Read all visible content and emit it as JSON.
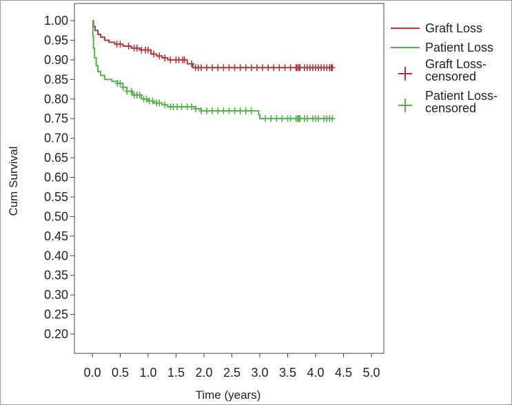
{
  "chart_data": {
    "type": "line",
    "xlabel": "Time (years)",
    "ylabel": "Cum Survival",
    "xlim": [
      0.0,
      5.0
    ],
    "ylim": [
      0.2,
      1.0
    ],
    "x_ticks": [
      "0.0",
      "0.5",
      "1.0",
      "1.5",
      "2.0",
      "2.5",
      "3.0",
      "3.5",
      "4.0",
      "4.5",
      "5.0"
    ],
    "y_ticks": [
      "0.20",
      "0.25",
      "0.30",
      "0.35",
      "0.40",
      "0.45",
      "0.50",
      "0.55",
      "0.60",
      "0.65",
      "0.70",
      "0.75",
      "0.80",
      "0.85",
      "0.90",
      "0.95",
      "1.00"
    ],
    "legend_position": "right",
    "legend": [
      {
        "label": "Graft Loss",
        "symbol": "line",
        "color": "#b5343c"
      },
      {
        "label": "Patient Loss",
        "symbol": "line",
        "color": "#55b04a"
      },
      {
        "label": "Graft Loss-",
        "label2": "censored",
        "symbol": "plus",
        "color": "#b5343c"
      },
      {
        "label": "Patient Loss-",
        "label2": "censored",
        "symbol": "plus",
        "color": "#55b04a"
      }
    ],
    "series": [
      {
        "name": "Graft Loss",
        "color": "#b5343c",
        "steps": [
          [
            0.0,
            1.0
          ],
          [
            0.02,
            0.985
          ],
          [
            0.05,
            0.975
          ],
          [
            0.1,
            0.965
          ],
          [
            0.15,
            0.958
          ],
          [
            0.22,
            0.95
          ],
          [
            0.3,
            0.945
          ],
          [
            0.4,
            0.94
          ],
          [
            0.55,
            0.935
          ],
          [
            0.7,
            0.93
          ],
          [
            0.85,
            0.925
          ],
          [
            1.05,
            0.915
          ],
          [
            1.15,
            0.91
          ],
          [
            1.25,
            0.905
          ],
          [
            1.35,
            0.9
          ],
          [
            1.7,
            0.89
          ],
          [
            1.8,
            0.88
          ],
          [
            4.3,
            0.88
          ]
        ],
        "censored": [
          0.44,
          0.5,
          0.65,
          0.75,
          0.8,
          0.88,
          0.95,
          1.0,
          1.1,
          1.2,
          1.3,
          1.4,
          1.5,
          1.55,
          1.62,
          1.65,
          1.78,
          1.85,
          1.9,
          1.95,
          2.05,
          2.15,
          2.25,
          2.35,
          2.45,
          2.55,
          2.65,
          2.75,
          2.85,
          2.95,
          3.05,
          3.15,
          3.25,
          3.35,
          3.45,
          3.55,
          3.65,
          3.67,
          3.7,
          3.72,
          3.8,
          3.85,
          3.9,
          3.95,
          4.0,
          4.05,
          4.1,
          4.15,
          4.2,
          4.25,
          4.28,
          4.3
        ]
      },
      {
        "name": "Patient Loss",
        "color": "#55b04a",
        "steps": [
          [
            0.0,
            1.0
          ],
          [
            0.01,
            0.96
          ],
          [
            0.02,
            0.93
          ],
          [
            0.04,
            0.905
          ],
          [
            0.07,
            0.885
          ],
          [
            0.1,
            0.87
          ],
          [
            0.15,
            0.86
          ],
          [
            0.22,
            0.85
          ],
          [
            0.35,
            0.845
          ],
          [
            0.45,
            0.84
          ],
          [
            0.55,
            0.83
          ],
          [
            0.62,
            0.82
          ],
          [
            0.72,
            0.81
          ],
          [
            0.88,
            0.8
          ],
          [
            1.0,
            0.795
          ],
          [
            1.1,
            0.79
          ],
          [
            1.25,
            0.785
          ],
          [
            1.35,
            0.78
          ],
          [
            1.85,
            0.775
          ],
          [
            1.95,
            0.77
          ],
          [
            2.98,
            0.76
          ],
          [
            3.0,
            0.75
          ],
          [
            4.3,
            0.75
          ]
        ],
        "censored": [
          0.45,
          0.5,
          0.55,
          0.62,
          0.7,
          0.75,
          0.8,
          0.85,
          0.92,
          0.97,
          1.02,
          1.08,
          1.15,
          1.2,
          1.3,
          1.4,
          1.45,
          1.52,
          1.6,
          1.7,
          1.78,
          1.85,
          1.95,
          2.05,
          2.15,
          2.25,
          2.35,
          2.45,
          2.55,
          2.65,
          2.75,
          2.85,
          3.1,
          3.2,
          3.3,
          3.4,
          3.5,
          3.55,
          3.65,
          3.68,
          3.7,
          3.72,
          3.8,
          3.85,
          3.95,
          4.0,
          4.05,
          4.15,
          4.2,
          4.25,
          4.3
        ]
      }
    ]
  }
}
